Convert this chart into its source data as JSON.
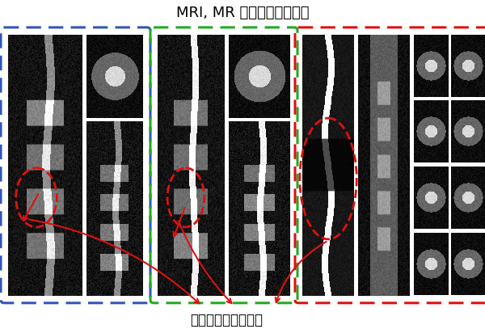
{
  "title": "MRI, MR ミエログラフィー",
  "subtitle": "脳脊髄液が白く描出",
  "title_fontsize": 13,
  "subtitle_fontsize": 12,
  "bg_color": "#ffffff",
  "border_blue": "#3355bb",
  "border_green": "#22aa22",
  "border_red": "#dd1111",
  "arrow_color": "#dd1111",
  "circle_color": "#dd1111",
  "fig_width": 6.0,
  "fig_height": 4.07
}
